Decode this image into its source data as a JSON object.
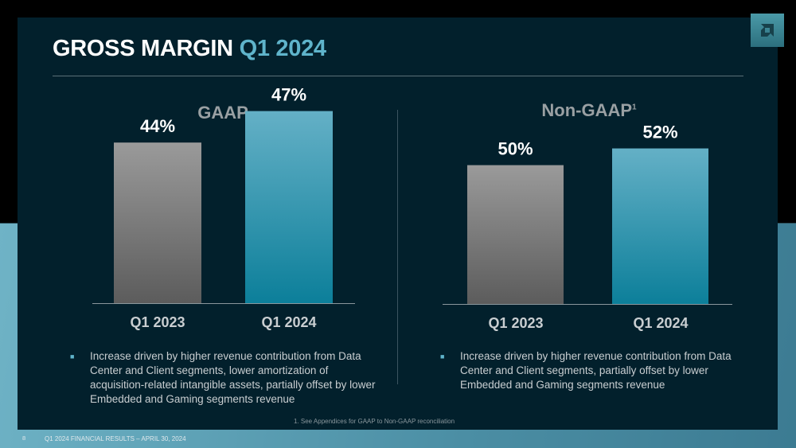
{
  "title": {
    "main": "GROSS MARGIN",
    "highlight": "Q1 2024"
  },
  "logo": "amd-arrow-logo",
  "chart_data": [
    {
      "type": "bar",
      "title": "GAAP",
      "categories": [
        "Q1 2023",
        "Q1 2024"
      ],
      "values": [
        44,
        47
      ],
      "data_labels": [
        "44%",
        "47%"
      ],
      "ylim": [
        28.7,
        50
      ],
      "grid": false,
      "colors": [
        "#8a8a8a",
        "#3f9cb6"
      ]
    },
    {
      "type": "bar",
      "title": "Non-GAAP",
      "title_sup": "1",
      "categories": [
        "Q1 2023",
        "Q1 2024"
      ],
      "values": [
        50,
        52
      ],
      "data_labels": [
        "50%",
        "52%"
      ],
      "ylim": [
        33.4,
        55
      ],
      "grid": false,
      "colors": [
        "#8a8a8a",
        "#3f9cb6"
      ]
    }
  ],
  "bullets": {
    "gaap": "Increase driven by higher revenue contribution from Data Center and Client segments, lower amortization of acquisition-related intangible assets, partially offset by lower Embedded and Gaming segments revenue",
    "nongaap": "Increase driven by higher revenue contribution from Data Center and Client segments, partially offset by lower Embedded and Gaming segments revenue"
  },
  "footnote": "1. See Appendices for GAAP to Non-GAAP reconciliation",
  "footer": {
    "page": "8",
    "text": "Q1 2024 FINANCIAL RESULTS – APRIL 30, 2024"
  }
}
